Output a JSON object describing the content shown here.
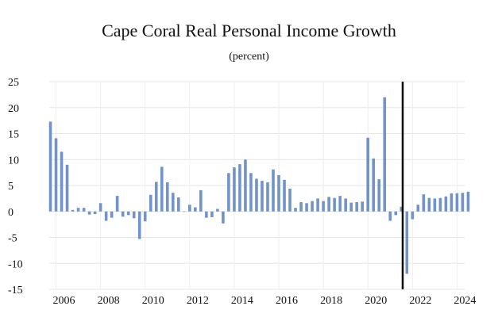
{
  "chart_data": {
    "type": "bar",
    "title": "Cape Coral Real Personal Income Growth",
    "subtitle": "(percent)",
    "xlabel": "",
    "ylabel": "",
    "ylim": [
      -15,
      25
    ],
    "yticks": [
      25,
      20,
      15,
      10,
      5,
      0,
      -5,
      -10,
      -15
    ],
    "xticks": [
      "2006",
      "2008",
      "2010",
      "2012",
      "2014",
      "2016",
      "2018",
      "2020",
      "2022",
      "2024"
    ],
    "grid": true,
    "bar_color": "#7094c9",
    "vertical_line_color": "#000000",
    "vertical_line_at": "2021Q3",
    "categories": [
      "2005Q4",
      "2006Q1",
      "2006Q2",
      "2006Q3",
      "2006Q4",
      "2007Q1",
      "2007Q2",
      "2007Q3",
      "2007Q4",
      "2008Q1",
      "2008Q2",
      "2008Q3",
      "2008Q4",
      "2009Q1",
      "2009Q2",
      "2009Q3",
      "2009Q4",
      "2010Q1",
      "2010Q2",
      "2010Q3",
      "2010Q4",
      "2011Q1",
      "2011Q2",
      "2011Q3",
      "2011Q4",
      "2012Q1",
      "2012Q2",
      "2012Q3",
      "2012Q4",
      "2013Q1",
      "2013Q2",
      "2013Q3",
      "2013Q4",
      "2014Q1",
      "2014Q2",
      "2014Q3",
      "2014Q4",
      "2015Q1",
      "2015Q2",
      "2015Q3",
      "2015Q4",
      "2016Q1",
      "2016Q2",
      "2016Q3",
      "2016Q4",
      "2017Q1",
      "2017Q2",
      "2017Q3",
      "2017Q4",
      "2018Q1",
      "2018Q2",
      "2018Q3",
      "2018Q4",
      "2019Q1",
      "2019Q2",
      "2019Q3",
      "2019Q4",
      "2020Q1",
      "2020Q2",
      "2020Q3",
      "2020Q4",
      "2021Q1",
      "2021Q2",
      "2021Q3",
      "2021Q4",
      "2022Q1",
      "2022Q2",
      "2022Q3",
      "2022Q4",
      "2023Q1",
      "2023Q2",
      "2023Q3",
      "2023Q4",
      "2024Q1",
      "2024Q2",
      "2024Q3"
    ],
    "values": [
      17.3,
      14.1,
      11.5,
      9.0,
      0.3,
      0.7,
      0.7,
      -0.6,
      -0.5,
      1.6,
      -1.8,
      -1.2,
      3.0,
      -1.0,
      -0.7,
      -1.3,
      -5.3,
      -1.9,
      3.2,
      5.7,
      8.6,
      5.6,
      3.6,
      2.7,
      0.0,
      1.3,
      0.8,
      4.1,
      -1.2,
      -1.1,
      0.5,
      -2.3,
      7.4,
      8.5,
      9.1,
      10.0,
      7.4,
      6.3,
      5.9,
      5.6,
      8.1,
      7.0,
      6.1,
      4.4,
      0.7,
      1.8,
      1.6,
      2.0,
      2.5,
      2.0,
      2.8,
      2.6,
      3.0,
      2.5,
      1.7,
      1.8,
      1.9,
      14.2,
      10.2,
      6.2,
      22.0,
      -1.8,
      -0.7,
      0.9,
      -12.0,
      -1.5,
      1.3,
      3.3,
      2.6,
      2.5,
      2.6,
      2.9,
      3.5,
      3.5,
      3.6,
      3.8
    ]
  }
}
